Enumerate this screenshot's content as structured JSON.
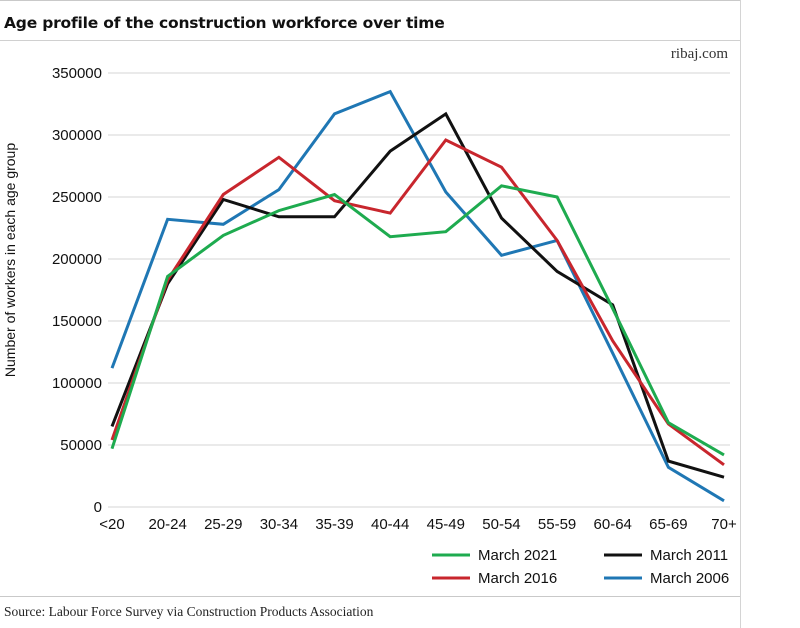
{
  "title": "Age profile of the construction workforce over time",
  "brand": "ribaj.com",
  "source": "Source: Labour Force Survey via Construction Products Association",
  "chart_data": {
    "type": "line",
    "categories": [
      "<20",
      "20-24",
      "25-29",
      "30-34",
      "35-39",
      "40-44",
      "45-49",
      "50-54",
      "55-59",
      "60-64",
      "65-69",
      "70+"
    ],
    "ylabel": "Number of workers in each age group",
    "ylim": [
      0,
      350000
    ],
    "yticks": [
      0,
      50000,
      100000,
      150000,
      200000,
      250000,
      300000,
      350000
    ],
    "grid": "horizontal",
    "legend": "bottom-right",
    "series": [
      {
        "name": "March 2021",
        "color": "#1eab4f",
        "values": [
          47000,
          186000,
          219000,
          239000,
          252000,
          218000,
          222000,
          259000,
          250000,
          160000,
          68000,
          42000
        ]
      },
      {
        "name": "March 2016",
        "color": "#c8262d",
        "values": [
          54000,
          183000,
          252000,
          282000,
          247000,
          237000,
          296000,
          274000,
          215000,
          134000,
          67000,
          34000
        ]
      },
      {
        "name": "March 2011",
        "color": "#111111",
        "values": [
          65000,
          180000,
          248000,
          234000,
          234000,
          287000,
          317000,
          233000,
          190000,
          163000,
          37000,
          24000
        ]
      },
      {
        "name": "March 2006",
        "color": "#1f77b4",
        "values": [
          112000,
          232000,
          228000,
          256000,
          317000,
          335000,
          254000,
          203000,
          215000,
          null,
          null,
          null
        ]
      },
      {
        "name": "",
        "color": "#1f77b4",
        "values": [
          null,
          null,
          null,
          null,
          null,
          null,
          null,
          null,
          215000,
          124000,
          32000,
          5000
        ]
      }
    ]
  }
}
